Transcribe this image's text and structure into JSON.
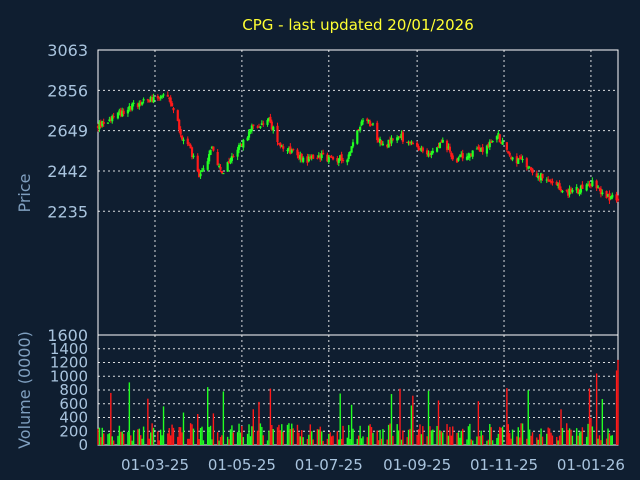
{
  "header": {
    "title": "CPG - last updated 20/01/2026"
  },
  "colors": {
    "background": "#0f1e30",
    "up": "#22ff22",
    "down": "#ff1a1a",
    "title": "#ffff33",
    "axis_text": "#a9c4de"
  },
  "chart_data": [
    {
      "type": "candlestick",
      "title": "CPG - last updated 20/01/2026",
      "ylabel": "Price",
      "xlabel": "",
      "ylim": [
        1600,
        3063
      ],
      "yticks": [
        1600,
        2235,
        2442,
        2649,
        2856,
        3063
      ],
      "ytick_labels": [
        "1600",
        "2235",
        "2442",
        "2649",
        "2856",
        "3063"
      ],
      "grid": true,
      "up_color": "#22ff22",
      "down_color": "#ff1a1a",
      "x_start": "2025-01-20",
      "x_end": "2026-01-20",
      "series": [
        {
          "x": [
            "2025-01-20",
            "2025-02-06",
            "2025-02-20",
            "2025-03-01",
            "2025-03-07",
            "2025-03-12",
            "2025-03-20",
            "2025-03-25",
            "2025-04-01",
            "2025-04-05",
            "2025-04-10",
            "2025-04-17",
            "2025-04-25",
            "2025-05-01",
            "2025-05-10",
            "2025-05-20",
            "2025-05-28",
            "2025-06-06",
            "2025-06-15",
            "2025-06-25",
            "2025-07-05",
            "2025-07-15",
            "2025-07-25",
            "2025-08-01",
            "2025-08-05",
            "2025-08-10",
            "2025-08-20",
            "2025-08-30",
            "2025-09-08",
            "2025-09-18",
            "2025-09-28",
            "2025-10-08",
            "2025-10-18",
            "2025-10-28",
            "2025-11-05",
            "2025-11-15",
            "2025-11-25",
            "2025-12-05",
            "2025-12-15",
            "2025-12-25",
            "2026-01-01",
            "2026-01-10",
            "2026-01-20"
          ],
          "price": [
            2670,
            2750,
            2800,
            2820,
            2830,
            2790,
            2620,
            2570,
            2410,
            2470,
            2560,
            2420,
            2530,
            2580,
            2680,
            2700,
            2580,
            2540,
            2500,
            2520,
            2500,
            2520,
            2720,
            2680,
            2600,
            2580,
            2620,
            2560,
            2530,
            2600,
            2500,
            2530,
            2560,
            2620,
            2520,
            2480,
            2420,
            2370,
            2330,
            2350,
            2380,
            2330,
            2280
          ]
        }
      ]
    },
    {
      "type": "bar",
      "ylabel": "Volume (0000)",
      "ylim": [
        0,
        1600
      ],
      "yticks": [
        0,
        200,
        400,
        600,
        800,
        1000,
        1200,
        1400
      ],
      "ytick_labels": [
        "0",
        "200",
        "400",
        "600",
        "800",
        "1000",
        "1200",
        "1400"
      ],
      "x_tick_labels": [
        "01-03-25",
        "01-05-25",
        "01-07-25",
        "01-09-25",
        "01-11-25",
        "01-01-26"
      ],
      "x_tick_dates": [
        "2025-03-01",
        "2025-05-01",
        "2025-07-01",
        "2025-09-01",
        "2025-11-01",
        "2026-01-01"
      ]
    }
  ]
}
